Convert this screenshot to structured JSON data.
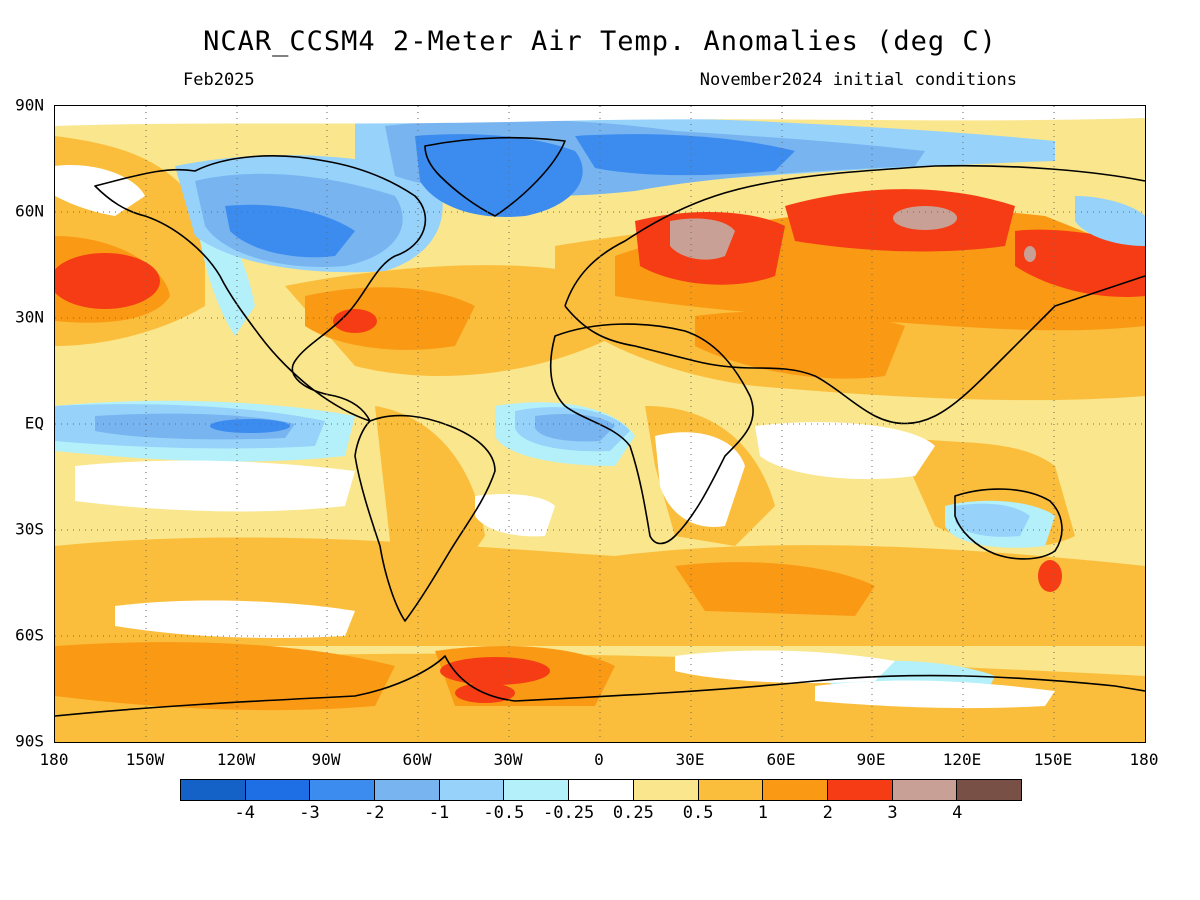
{
  "header": {
    "title": "NCAR_CCSM4 2-Meter Air Temp. Anomalies (deg C)",
    "valid_month": "Feb2025",
    "init_conditions": "November2024 initial conditions"
  },
  "map": {
    "type": "global temperature anomaly map",
    "projection": "equirectangular",
    "lat_labels": [
      "90N",
      "60N",
      "30N",
      "EQ",
      "30S",
      "60S",
      "90S"
    ],
    "lon_labels": [
      "180",
      "150W",
      "120W",
      "90W",
      "60W",
      "30W",
      "0",
      "30E",
      "60E",
      "90E",
      "120E",
      "150E",
      "180"
    ],
    "grid": true,
    "regions": [
      {
        "region": "Central Russia",
        "anomaly": "3 to 4"
      },
      {
        "region": "Eastern Europe",
        "anomaly": "3 to 4"
      },
      {
        "region": "Northeast Asia",
        "anomaly": "2 to 3"
      },
      {
        "region": "North Pacific near dateline",
        "anomaly": "2 to 3"
      },
      {
        "region": "Greenland and Arctic",
        "anomaly": "-2 to -3"
      },
      {
        "region": "Western Canada",
        "anomaly": "-2 to -3"
      },
      {
        "region": "Equatorial Pacific",
        "anomaly": "-1 to -2"
      },
      {
        "region": "Antarctic near 30W",
        "anomaly": "2 to 3"
      }
    ]
  },
  "colorbar": {
    "labels": [
      "-4",
      "-3",
      "-2",
      "-1",
      "-0.5",
      "-0.25",
      "0.25",
      "0.5",
      "1",
      "2",
      "3",
      "4"
    ],
    "colors": [
      "#1462c8",
      "#1e6ee6",
      "#3c8cf0",
      "#78b4f0",
      "#96d2fa",
      "#b4f0fa",
      "#ffffff",
      "#fae68c",
      "#fabe3c",
      "#fa9a14",
      "#f53c14",
      "#c8a096",
      "#785046"
    ]
  }
}
